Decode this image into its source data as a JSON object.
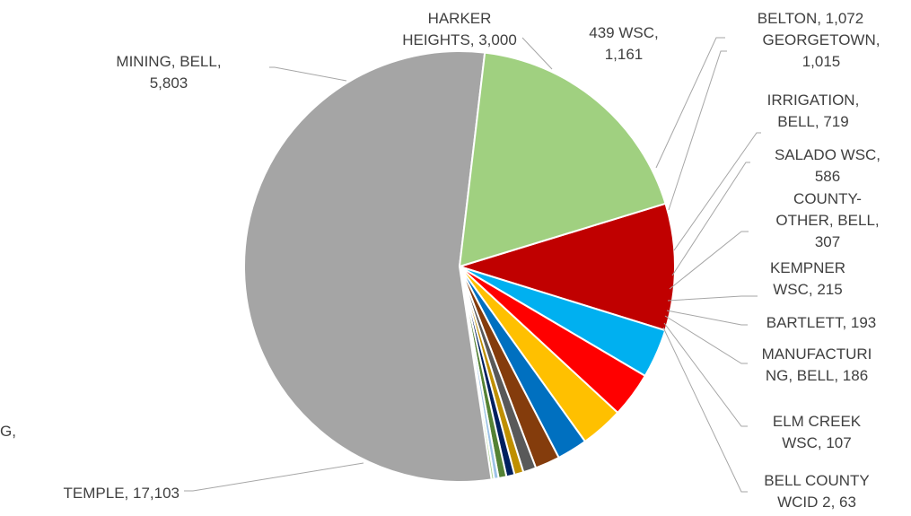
{
  "chart_data": {
    "type": "pie",
    "title": "",
    "slices": [
      {
        "label_lines": [
          "HARKER",
          "HEIGHTS, 3,000"
        ],
        "category": "HARKER HEIGHTS",
        "value": 3000,
        "color": "#c00000"
      },
      {
        "label_lines": [
          "439 WSC,",
          "1,161"
        ],
        "category": "439 WSC",
        "value": 1161,
        "color": "#00b0f0"
      },
      {
        "label_lines": [
          "BELTON, 1,072"
        ],
        "category": "BELTON",
        "value": 1072,
        "color": "#ff0000"
      },
      {
        "label_lines": [
          "GEORGETOWN,",
          "1,015"
        ],
        "category": "GEORGETOWN",
        "value": 1015,
        "color": "#ffc000"
      },
      {
        "label_lines": [
          "IRRIGATION,",
          "BELL, 719"
        ],
        "category": "IRRIGATION, BELL",
        "value": 719,
        "color": "#0070c0"
      },
      {
        "label_lines": [
          "SALADO WSC,",
          "586"
        ],
        "category": "SALADO WSC",
        "value": 586,
        "color": "#843c0c"
      },
      {
        "label_lines": [
          "COUNTY-",
          "OTHER, BELL,",
          "307"
        ],
        "category": "COUNTY-OTHER, BELL",
        "value": 307,
        "color": "#595959"
      },
      {
        "label_lines": [
          "KEMPNER",
          "WSC, 215"
        ],
        "category": "KEMPNER WSC",
        "value": 215,
        "color": "#bf8f00"
      },
      {
        "label_lines": [
          "BARTLETT, 193"
        ],
        "category": "BARTLETT",
        "value": 193,
        "color": "#002060"
      },
      {
        "label_lines": [
          "MANUFACTURI",
          "NG, BELL, 186"
        ],
        "category": "MANUFACTURING, BELL",
        "value": 186,
        "color": "#548235"
      },
      {
        "label_lines": [
          "ELM CREEK",
          "WSC, 107"
        ],
        "category": "ELM CREEK WSC",
        "value": 107,
        "color": "#9dc3e6"
      },
      {
        "label_lines": [
          "BELL COUNTY",
          "WCID 2, 63"
        ],
        "category": "BELL COUNTY WCID 2",
        "value": 63,
        "color": "#a9d18e"
      },
      {
        "label_lines": [
          "TEMPLE, 17,103"
        ],
        "category": "TEMPLE",
        "value": 17103,
        "color": "#a5a5a5"
      },
      {
        "label_lines": [
          "MINING, BELL,",
          "5,803"
        ],
        "category": "MINING, BELL",
        "value": 5803,
        "color": "#a0d080"
      }
    ],
    "partial_label_lines": [
      "G,"
    ]
  }
}
